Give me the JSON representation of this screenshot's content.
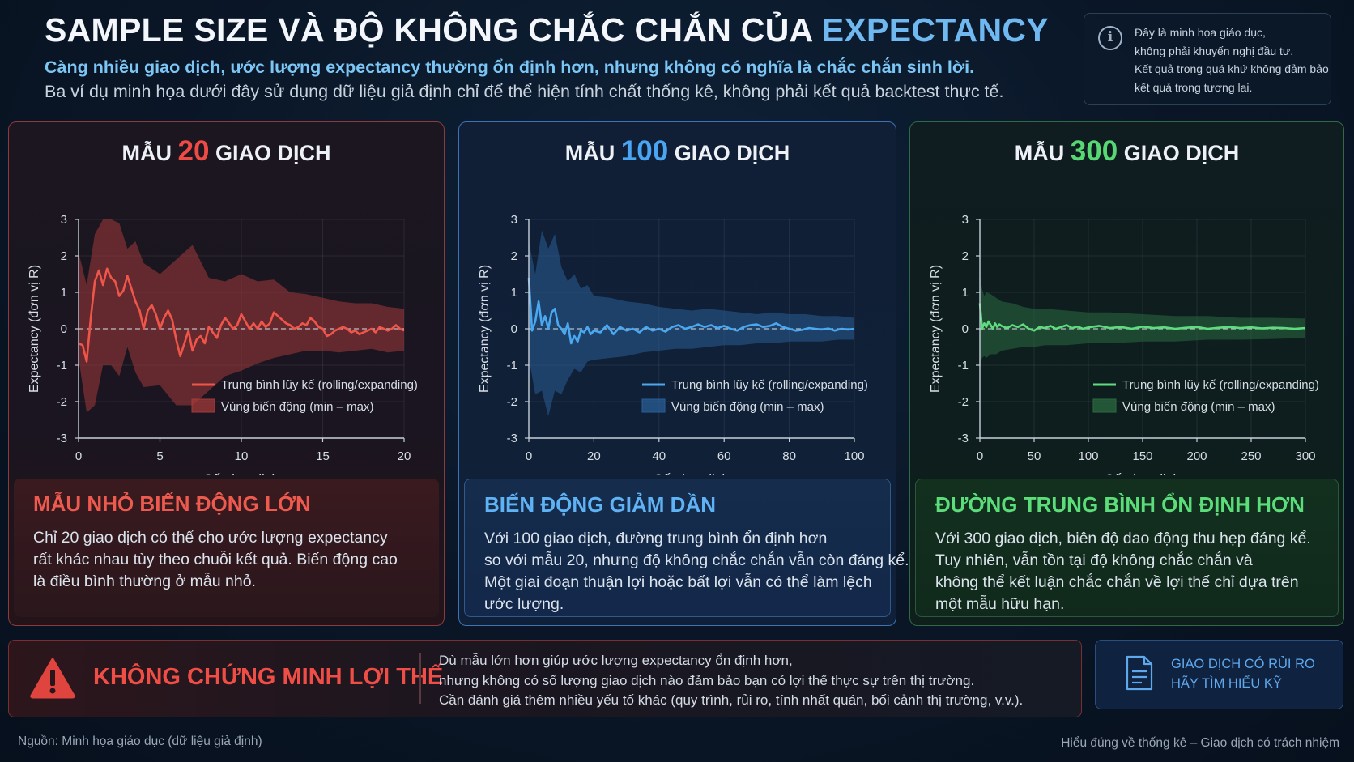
{
  "header": {
    "title_main": "SAMPLE SIZE VÀ ĐỘ KHÔNG CHẮC CHẮN CỦA ",
    "title_accent": "EXPECTANCY",
    "subtitle1": "Càng nhiều giao dịch, ước lượng expectancy thường ổn định hơn, nhưng không có nghĩa là chắc chắn sinh lời.",
    "subtitle2": "Ba ví dụ minh họa dưới đây sử dụng dữ liệu giả định chỉ để thể hiện tính chất thống kê, không phải kết quả backtest thực tế."
  },
  "disclaimer": {
    "icon": "info-icon",
    "lines": [
      "Đây là minh họa giáo dục,",
      "không phải khuyến nghị đầu tư.",
      "Kết quả trong quá khứ không đảm bảo",
      "kết quả trong tương lai."
    ]
  },
  "panels": [
    {
      "title_pre": "MẪU ",
      "title_num": "20",
      "title_post": " GIAO DỊCH",
      "desc_title": "MẪU NHỎ BIẾN ĐỘNG LỚN",
      "desc_lines": [
        "Chỉ 20 giao dịch có thể cho ước lượng expectancy",
        "rất khác nhau tùy theo chuỗi kết quả. Biến động cao",
        "là điều bình thường ở mẫu nhỏ."
      ]
    },
    {
      "title_pre": "MẪU ",
      "title_num": "100",
      "title_post": " GIAO DỊCH",
      "desc_title": "BIẾN ĐỘNG GIẢM DẦN",
      "desc_lines": [
        "Với 100 giao dịch, đường trung bình ổn định hơn",
        "so với mẫu 20, nhưng độ không chắc chắn vẫn còn đáng kể.",
        "Một giai đoạn thuận lợi hoặc bất lợi vẫn có thể làm lệch",
        "ước lượng."
      ]
    },
    {
      "title_pre": "MẪU ",
      "title_num": "300",
      "title_post": " GIAO DỊCH",
      "desc_title": "ĐƯỜNG TRUNG BÌNH ỔN ĐỊNH HƠN",
      "desc_lines": [
        "Với 300 giao dịch, biên độ dao động thu hẹp đáng kể.",
        "Tuy nhiên, vẫn tồn tại độ không chắc chắn và",
        "không thể kết luận chắc chắn về lợi thế chỉ dựa trên",
        "một mẫu hữu hạn."
      ]
    }
  ],
  "chart_data": [
    {
      "type": "line",
      "xlabel": "Số giao dịch",
      "ylabel": "Expectancy (đơn vị R)",
      "xlim": [
        0,
        20
      ],
      "ylim": [
        -3,
        3
      ],
      "xticks": [
        0,
        5,
        10,
        15,
        20
      ],
      "yticks": [
        3,
        2,
        1,
        0,
        -1,
        -2,
        -3
      ],
      "line_color": "#f0554a",
      "band_color": "#a33a3a",
      "series": [
        {
          "name": "Trung bình lũy kế (rolling/expanding)",
          "x": [
            0,
            0.25,
            0.5,
            0.75,
            1,
            1.25,
            1.5,
            1.75,
            2,
            2.25,
            2.5,
            2.75,
            3,
            3.25,
            3.5,
            3.75,
            4,
            4.25,
            4.5,
            4.75,
            5,
            5.25,
            5.5,
            5.75,
            6,
            6.25,
            6.5,
            6.75,
            7,
            7.25,
            7.5,
            7.75,
            8,
            8.25,
            8.5,
            8.75,
            9,
            9.25,
            9.5,
            9.75,
            10,
            10.25,
            10.5,
            10.75,
            11,
            11.25,
            11.5,
            11.75,
            12,
            12.25,
            12.5,
            12.75,
            13,
            13.25,
            13.5,
            13.75,
            14,
            14.25,
            14.5,
            14.75,
            15,
            15.25,
            15.5,
            15.75,
            16,
            16.25,
            16.5,
            16.75,
            17,
            17.25,
            17.5,
            17.75,
            18,
            18.25,
            18.5,
            18.75,
            19,
            19.25,
            19.5,
            19.75,
            20
          ],
          "y": [
            -0.4,
            -0.45,
            -0.9,
            0.3,
            1.3,
            1.6,
            1.2,
            1.65,
            1.4,
            1.3,
            0.9,
            1.05,
            1.45,
            1.1,
            0.75,
            0.5,
            0.0,
            0.5,
            0.65,
            0.4,
            0.0,
            0.3,
            0.5,
            0.25,
            -0.3,
            -0.75,
            -0.4,
            -0.05,
            -0.6,
            -0.3,
            -0.2,
            -0.4,
            0.05,
            -0.1,
            -0.25,
            0.1,
            0.3,
            0.15,
            0.0,
            0.1,
            0.4,
            0.2,
            0.0,
            0.15,
            0.0,
            0.2,
            0.05,
            0.15,
            0.45,
            0.35,
            0.25,
            0.15,
            0.1,
            0.0,
            0.05,
            0.15,
            0.1,
            0.3,
            0.2,
            0.05,
            0.0,
            -0.2,
            -0.15,
            -0.05,
            0.0,
            0.05,
            0.0,
            -0.1,
            -0.05,
            -0.15,
            -0.1,
            -0.05,
            0.0,
            -0.1,
            0.05,
            0.0,
            -0.05,
            0.0,
            0.1,
            0.0,
            -0.05
          ]
        },
        {
          "name": "Vùng biến động (min – max)",
          "x": [
            0,
            0.5,
            1,
            1.5,
            2,
            2.5,
            3,
            3.5,
            4,
            5,
            6,
            7,
            8,
            9,
            10,
            11,
            12,
            13,
            14,
            15,
            16,
            17,
            18,
            19,
            20
          ],
          "upper": [
            2.1,
            1.2,
            2.6,
            3.0,
            3.0,
            2.9,
            2.2,
            2.4,
            1.8,
            1.5,
            1.9,
            2.3,
            1.4,
            1.3,
            1.5,
            1.3,
            1.35,
            1.0,
            0.95,
            0.85,
            0.75,
            0.7,
            0.7,
            0.6,
            0.55
          ],
          "lower": [
            -0.8,
            -2.3,
            -2.1,
            -1.0,
            -1.0,
            -1.3,
            -0.5,
            -1.2,
            -1.6,
            -1.55,
            -2.1,
            -2.1,
            -1.7,
            -1.3,
            -1.15,
            -0.95,
            -0.8,
            -0.7,
            -0.6,
            -0.6,
            -0.65,
            -0.6,
            -0.55,
            -0.65,
            -0.6
          ]
        }
      ]
    },
    {
      "type": "line",
      "xlabel": "Số giao dịch",
      "ylabel": "Expectancy (đơn vị R)",
      "xlim": [
        0,
        100
      ],
      "ylim": [
        -3,
        3
      ],
      "xticks": [
        0,
        20,
        40,
        60,
        80,
        100
      ],
      "yticks": [
        3,
        2,
        1,
        0,
        -1,
        -2,
        -3
      ],
      "line_color": "#4aa8f0",
      "band_color": "#2a5d96",
      "series": [
        {
          "name": "Trung bình lũy kế (rolling/expanding)",
          "x": [
            0,
            1,
            2,
            3,
            4,
            5,
            6,
            7,
            8,
            9,
            10,
            11,
            12,
            13,
            14,
            15,
            16,
            17,
            18,
            19,
            20,
            22,
            24,
            26,
            28,
            30,
            32,
            34,
            36,
            38,
            40,
            42,
            44,
            46,
            48,
            50,
            52,
            54,
            56,
            58,
            60,
            62,
            64,
            66,
            68,
            70,
            72,
            74,
            76,
            78,
            80,
            82,
            84,
            86,
            88,
            90,
            92,
            94,
            96,
            98,
            100
          ],
          "y": [
            1.4,
            -0.05,
            0.2,
            0.75,
            0.1,
            0.35,
            0.0,
            0.45,
            0.55,
            0.1,
            0.0,
            -0.15,
            0.15,
            -0.4,
            -0.2,
            -0.35,
            -0.05,
            -0.1,
            0.05,
            -0.15,
            -0.05,
            -0.1,
            0.1,
            -0.15,
            0.05,
            -0.05,
            0.0,
            -0.1,
            0.05,
            -0.05,
            0.0,
            -0.08,
            0.05,
            0.1,
            0.0,
            0.05,
            0.12,
            0.05,
            0.1,
            0.02,
            0.08,
            0.0,
            -0.05,
            0.05,
            0.1,
            0.12,
            0.05,
            0.08,
            0.15,
            0.05,
            0.0,
            -0.05,
            -0.03,
            0.02,
            0.0,
            -0.02,
            0.01,
            -0.05,
            0.0,
            -0.02,
            0.0
          ]
        },
        {
          "name": "Vùng biến động (min – max)",
          "x": [
            0,
            2,
            4,
            6,
            8,
            10,
            12,
            14,
            16,
            18,
            20,
            25,
            30,
            35,
            40,
            45,
            50,
            55,
            60,
            65,
            70,
            75,
            80,
            85,
            90,
            95,
            100
          ],
          "upper": [
            2.4,
            1.5,
            2.7,
            2.2,
            2.6,
            1.7,
            1.3,
            1.5,
            1.1,
            1.2,
            0.9,
            0.85,
            0.75,
            0.7,
            0.6,
            0.55,
            0.5,
            0.55,
            0.5,
            0.45,
            0.4,
            0.45,
            0.4,
            0.4,
            0.35,
            0.35,
            0.3
          ],
          "lower": [
            -0.8,
            -1.8,
            -1.7,
            -2.4,
            -1.7,
            -1.8,
            -1.4,
            -1.1,
            -1.2,
            -0.9,
            -0.85,
            -0.8,
            -0.75,
            -0.65,
            -0.6,
            -0.55,
            -0.55,
            -0.5,
            -0.45,
            -0.45,
            -0.4,
            -0.4,
            -0.35,
            -0.35,
            -0.35,
            -0.3,
            -0.3
          ]
        }
      ]
    },
    {
      "type": "line",
      "xlabel": "Số giao dịch",
      "ylabel": "Expectancy (đơn vị R)",
      "xlim": [
        0,
        300
      ],
      "ylim": [
        -3,
        3
      ],
      "xticks": [
        0,
        50,
        100,
        150,
        200,
        250,
        300
      ],
      "yticks": [
        3,
        2,
        1,
        0,
        -1,
        -2,
        -3
      ],
      "line_color": "#5fdd7e",
      "band_color": "#2a6a3f",
      "series": [
        {
          "name": "Trung bình lũy kế (rolling/expanding)",
          "x": [
            0,
            2,
            4,
            6,
            8,
            10,
            12,
            14,
            16,
            18,
            20,
            25,
            30,
            35,
            40,
            45,
            50,
            55,
            60,
            65,
            70,
            75,
            80,
            85,
            90,
            95,
            100,
            110,
            120,
            130,
            140,
            150,
            160,
            170,
            180,
            190,
            200,
            210,
            220,
            230,
            240,
            250,
            260,
            270,
            280,
            290,
            300
          ],
          "y": [
            0.7,
            0.0,
            0.15,
            0.05,
            0.2,
            0.1,
            0.0,
            0.15,
            0.05,
            0.12,
            0.08,
            0.02,
            0.1,
            0.05,
            0.12,
            0.0,
            -0.05,
            0.05,
            0.02,
            0.08,
            0.0,
            0.05,
            0.1,
            0.02,
            0.06,
            0.0,
            0.04,
            0.08,
            0.02,
            0.05,
            0.0,
            0.06,
            0.02,
            0.04,
            0.0,
            0.03,
            0.05,
            0.0,
            0.03,
            0.05,
            0.02,
            0.04,
            0.01,
            0.03,
            0.02,
            0.0,
            0.02
          ]
        },
        {
          "name": "Vùng biến động (min – max)",
          "x": [
            0,
            2,
            4,
            6,
            10,
            15,
            20,
            30,
            40,
            50,
            60,
            80,
            100,
            120,
            150,
            180,
            210,
            240,
            270,
            300
          ],
          "upper": [
            1.5,
            1.1,
            0.9,
            1.0,
            0.95,
            0.85,
            0.75,
            0.7,
            0.6,
            0.55,
            0.55,
            0.5,
            0.45,
            0.45,
            0.4,
            0.35,
            0.35,
            0.3,
            0.3,
            0.28
          ],
          "lower": [
            -1.1,
            -0.8,
            -0.75,
            -0.8,
            -0.7,
            -0.7,
            -0.6,
            -0.55,
            -0.5,
            -0.5,
            -0.45,
            -0.45,
            -0.4,
            -0.4,
            -0.35,
            -0.35,
            -0.3,
            -0.3,
            -0.28,
            -0.25
          ]
        }
      ]
    }
  ],
  "warning": {
    "icon": "warning-triangle-icon",
    "title": "KHÔNG CHỨNG MINH LỢI THẾ",
    "lines": [
      "Dù mẫu lớn hơn giúp ước lượng expectancy ổn định hơn,",
      "nhưng không có số lượng giao dịch nào đảm bảo bạn có lợi thế thực sự trên thị trường.",
      "Cần đánh giá thêm nhiều yếu tố khác (quy trình, rủi ro, tính nhất quán, bối cảnh thị trường, v.v.)."
    ]
  },
  "risk_note": {
    "icon": "document-icon",
    "lines": [
      "GIAO DỊCH CÓ RỦI RO",
      "HÃY TÌM HIỂU KỸ"
    ]
  },
  "footer": {
    "left": "Nguồn: Minh họa giáo dục (dữ liệu giả định)",
    "right": "Hiểu đúng về thống kê – Giao dịch có trách nhiệm"
  }
}
